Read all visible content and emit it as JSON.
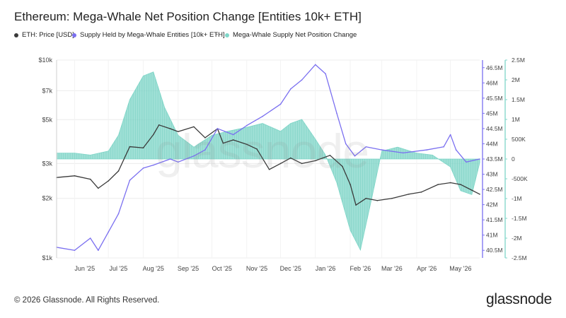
{
  "title": "Ethereum: Mega-Whale Net Position Change [Entities 10k+ ETH]",
  "legend": [
    {
      "label": "ETH: Price [USD]",
      "color": "#3a3a3a"
    },
    {
      "label": "Supply Held by Mega-Whale Entities [10k+ ETH]",
      "color": "#7a6ff0"
    },
    {
      "label": "-",
      "color": null
    },
    {
      "label": "Mega-Whale Supply Net Position Change",
      "color": "#7fd6c8"
    }
  ],
  "watermark": "glassnode",
  "footer": "© 2026 Glassnode. All Rights Reserved.",
  "brand": "glassnode",
  "colors": {
    "price": "#3a3a3a",
    "supply": "#7a6ff0",
    "netchange": "#7fd6c8",
    "grid": "#ececec",
    "axis_supply": "#7a6ff0",
    "axis_change": "#7fd6c8"
  },
  "chart_data": {
    "type": "line",
    "x_axis": {
      "ticks": [
        "Jun '25",
        "Jul '25",
        "Aug '25",
        "Sep '25",
        "Oct '25",
        "Nov '25",
        "Dec '25",
        "Jan '26",
        "Feb '26",
        "Mar '26",
        "Apr '26",
        "May '26"
      ],
      "range": [
        "2025-05-16",
        "2026-05-27"
      ]
    },
    "y_left": {
      "scale": "log",
      "range": [
        1000,
        10000
      ],
      "ticks": [
        "$1k",
        "$2k",
        "$3k",
        "$5k",
        "$7k",
        "$10k"
      ],
      "tick_values": [
        1000,
        2000,
        3000,
        5000,
        7000,
        10000
      ]
    },
    "y_right_inner": {
      "range": [
        40.25,
        46.75
      ],
      "ticks": [
        "40.5M",
        "41M",
        "41.5M",
        "42M",
        "42.5M",
        "43M",
        "43.5M",
        "44M",
        "44.5M",
        "45M",
        "45.5M",
        "46M",
        "46.5M"
      ],
      "tick_values": [
        40.5,
        41,
        41.5,
        42,
        42.5,
        43,
        43.5,
        44,
        44.5,
        45,
        45.5,
        46,
        46.5
      ]
    },
    "y_right_outer": {
      "range": [
        -2.5,
        2.5
      ],
      "ticks": [
        "2.5M",
        "2M",
        "1.5M",
        "1M",
        "500K",
        "0",
        "-500K",
        "-1M",
        "-1.5M",
        "-2M",
        "-2.5M"
      ],
      "tick_values": [
        2.5,
        2,
        1.5,
        1,
        0.5,
        0,
        -0.5,
        -1,
        -1.5,
        -2,
        -2.5
      ]
    },
    "series": [
      {
        "name": "ETH: Price [USD]",
        "axis": "left",
        "x": [
          "2025-05-16",
          "2025-06-01",
          "2025-06-15",
          "2025-06-22",
          "2025-07-01",
          "2025-07-10",
          "2025-07-20",
          "2025-08-01",
          "2025-08-10",
          "2025-08-15",
          "2025-08-25",
          "2025-09-01",
          "2025-09-15",
          "2025-09-25",
          "2025-10-06",
          "2025-10-11",
          "2025-10-20",
          "2025-11-01",
          "2025-11-10",
          "2025-11-21",
          "2025-12-01",
          "2025-12-10",
          "2025-12-20",
          "2026-01-01",
          "2026-01-14",
          "2026-01-25",
          "2026-02-01",
          "2026-02-06",
          "2026-02-15",
          "2026-02-25",
          "2026-03-10",
          "2026-03-25",
          "2026-04-05",
          "2026-04-20",
          "2026-05-01",
          "2026-05-10",
          "2026-05-20",
          "2026-05-27"
        ],
        "y": [
          2550,
          2600,
          2500,
          2250,
          2450,
          2750,
          3650,
          3600,
          4200,
          4700,
          4500,
          4350,
          4600,
          4050,
          4500,
          3800,
          3950,
          3750,
          3550,
          2800,
          3000,
          3200,
          3000,
          3100,
          3300,
          2900,
          2350,
          1850,
          2000,
          1950,
          2000,
          2100,
          2150,
          2350,
          2400,
          2350,
          2200,
          2100
        ]
      },
      {
        "name": "Supply Held by Mega-Whale Entities [10k+ ETH]",
        "axis": "right_inner",
        "x": [
          "2025-05-16",
          "2025-06-01",
          "2025-06-15",
          "2025-06-22",
          "2025-07-01",
          "2025-07-10",
          "2025-07-20",
          "2025-08-01",
          "2025-08-10",
          "2025-08-25",
          "2025-09-01",
          "2025-09-15",
          "2025-09-25",
          "2025-10-06",
          "2025-10-20",
          "2025-11-01",
          "2025-11-15",
          "2025-12-01",
          "2025-12-10",
          "2025-12-20",
          "2026-01-01",
          "2026-01-10",
          "2026-01-20",
          "2026-01-28",
          "2026-02-05",
          "2026-02-15",
          "2026-03-01",
          "2026-03-20",
          "2026-04-10",
          "2026-04-25",
          "2026-05-01",
          "2026-05-06",
          "2026-05-15",
          "2026-05-27"
        ],
        "y": [
          40.6,
          40.5,
          40.9,
          40.5,
          41.1,
          41.7,
          42.8,
          43.2,
          43.3,
          43.5,
          43.4,
          43.6,
          43.8,
          44.5,
          44.3,
          44.6,
          44.9,
          45.3,
          45.8,
          46.1,
          46.6,
          46.3,
          45.0,
          44.0,
          43.6,
          43.9,
          43.8,
          43.7,
          43.8,
          43.9,
          44.3,
          43.8,
          43.4,
          43.5
        ]
      },
      {
        "name": "Mega-Whale Supply Net Position Change",
        "axis": "right_outer",
        "type": "area",
        "x": [
          "2025-05-16",
          "2025-06-01",
          "2025-06-15",
          "2025-07-01",
          "2025-07-10",
          "2025-07-20",
          "2025-08-01",
          "2025-08-10",
          "2025-08-20",
          "2025-09-01",
          "2025-09-15",
          "2025-10-01",
          "2025-10-15",
          "2025-11-01",
          "2025-11-15",
          "2025-12-01",
          "2025-12-10",
          "2025-12-20",
          "2026-01-01",
          "2026-01-10",
          "2026-01-20",
          "2026-02-01",
          "2026-02-10",
          "2026-02-20",
          "2026-03-01",
          "2026-03-15",
          "2026-04-01",
          "2026-04-15",
          "2026-05-01",
          "2026-05-10",
          "2026-05-20",
          "2026-05-27"
        ],
        "y": [
          0.15,
          0.15,
          0.1,
          0.2,
          0.6,
          1.5,
          2.1,
          2.2,
          1.3,
          0.6,
          0.3,
          0.6,
          0.7,
          0.8,
          0.9,
          0.7,
          0.9,
          1.0,
          0.5,
          0.1,
          -0.6,
          -1.8,
          -2.3,
          -1.0,
          0.2,
          0.3,
          0.15,
          0.1,
          -0.2,
          -0.8,
          -0.9,
          -0.1
        ]
      }
    ]
  }
}
